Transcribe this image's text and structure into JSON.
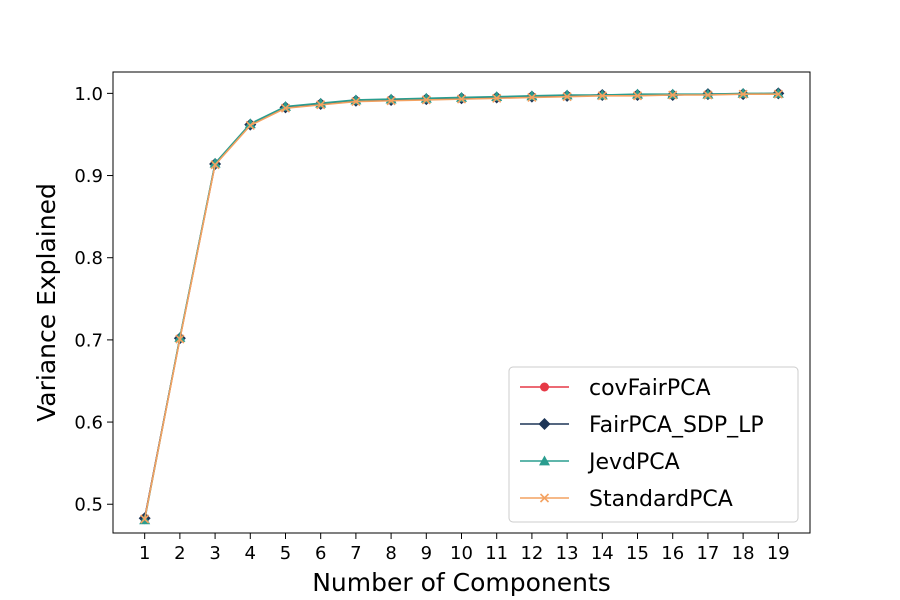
{
  "chart_data": {
    "type": "line",
    "title": "",
    "xlabel": "Number of Components",
    "ylabel": "Variance Explained",
    "x": [
      1,
      2,
      3,
      4,
      5,
      6,
      7,
      8,
      9,
      10,
      11,
      12,
      13,
      14,
      15,
      16,
      17,
      18,
      19
    ],
    "xticks": [
      "1",
      "2",
      "3",
      "4",
      "5",
      "6",
      "7",
      "8",
      "9",
      "10",
      "11",
      "12",
      "13",
      "14",
      "15",
      "16",
      "17",
      "18",
      "19"
    ],
    "yticks": [
      "0.5",
      "0.6",
      "0.7",
      "0.8",
      "0.9",
      "1.0"
    ],
    "ylim": [
      0.465,
      1.026
    ],
    "xlim": [
      0.1,
      19.9
    ],
    "grid": false,
    "legend_position": "lower-right",
    "series": [
      {
        "name": "covFairPCA",
        "color": "#e63946",
        "marker": "circle",
        "values": [
          0.483,
          0.702,
          0.914,
          0.962,
          0.983,
          0.987,
          0.991,
          0.992,
          0.993,
          0.994,
          0.995,
          0.996,
          0.997,
          0.998,
          0.998,
          0.998,
          0.999,
          0.999,
          1.0
        ]
      },
      {
        "name": "FairPCA_SDP_LP",
        "color": "#1d3557",
        "marker": "diamond",
        "values": [
          0.483,
          0.702,
          0.914,
          0.962,
          0.983,
          0.987,
          0.991,
          0.992,
          0.993,
          0.994,
          0.995,
          0.996,
          0.997,
          0.998,
          0.998,
          0.998,
          0.999,
          0.999,
          1.0
        ]
      },
      {
        "name": "JevdPCA",
        "color": "#2a9d8f",
        "marker": "triangle",
        "values": [
          0.481,
          0.703,
          0.915,
          0.963,
          0.984,
          0.988,
          0.992,
          0.993,
          0.994,
          0.995,
          0.996,
          0.997,
          0.998,
          0.998,
          0.999,
          0.999,
          0.999,
          1.0,
          1.0
        ]
      },
      {
        "name": "StandardPCA",
        "color": "#f4a261",
        "marker": "x",
        "values": [
          0.482,
          0.701,
          0.913,
          0.961,
          0.982,
          0.986,
          0.99,
          0.991,
          0.992,
          0.993,
          0.994,
          0.995,
          0.996,
          0.997,
          0.997,
          0.998,
          0.998,
          0.999,
          0.999
        ]
      }
    ]
  }
}
